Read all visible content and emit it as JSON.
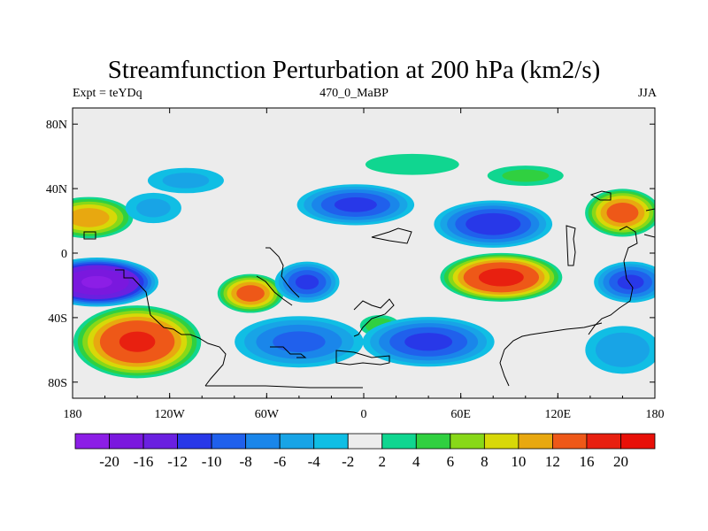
{
  "chart_data": {
    "type": "heatmap",
    "title": "Streamfunction Perturbation at 200 hPa (km2/s)",
    "left_label": "Expt = teYDq",
    "center_label": "470_0_MaBP",
    "right_label": "JJA",
    "xlim": [
      -180,
      180
    ],
    "ylim": [
      -90,
      90
    ],
    "x_ticks": [
      {
        "value": -180,
        "label": "180"
      },
      {
        "value": -120,
        "label": "120W"
      },
      {
        "value": -60,
        "label": "60W"
      },
      {
        "value": 0,
        "label": "0"
      },
      {
        "value": 60,
        "label": "60E"
      },
      {
        "value": 120,
        "label": "120E"
      },
      {
        "value": 180,
        "label": "180"
      }
    ],
    "y_ticks": [
      {
        "value": 80,
        "label": "80N"
      },
      {
        "value": 40,
        "label": "40N"
      },
      {
        "value": 0,
        "label": "0"
      },
      {
        "value": -40,
        "label": "40S"
      },
      {
        "value": -80,
        "label": "80S"
      }
    ],
    "colorbar": {
      "levels": [
        "-20",
        "-16",
        "-12",
        "-10",
        "-8",
        "-6",
        "-4",
        "-2",
        "2",
        "4",
        "6",
        "8",
        "10",
        "12",
        "16",
        "20"
      ],
      "colors": [
        "#8c1ee6",
        "#7a18de",
        "#6a20e0",
        "#2838e8",
        "#2060ec",
        "#1a86ea",
        "#18a4e6",
        "#10bee4",
        "#ececec",
        "#10d690",
        "#30d040",
        "#88d818",
        "#d8d808",
        "#e8a810",
        "#ee5818",
        "#e82010",
        "#e81008"
      ]
    },
    "field_blobs": [
      {
        "lon": -170,
        "lat": 22,
        "rx": 30,
        "ry": 14,
        "value": 11
      },
      {
        "lon": -165,
        "lat": -18,
        "rx": 40,
        "ry": 16,
        "value": -20
      },
      {
        "lon": -130,
        "lat": 28,
        "rx": 22,
        "ry": 12,
        "value": -4
      },
      {
        "lon": -140,
        "lat": -55,
        "rx": 42,
        "ry": 24,
        "value": 16
      },
      {
        "lon": -70,
        "lat": -25,
        "rx": 22,
        "ry": 13,
        "value": 13
      },
      {
        "lon": -40,
        "lat": -55,
        "rx": 45,
        "ry": 18,
        "value": -8
      },
      {
        "lon": -35,
        "lat": -18,
        "rx": 22,
        "ry": 14,
        "value": -10
      },
      {
        "lon": -5,
        "lat": 30,
        "rx": 40,
        "ry": 14,
        "value": -10
      },
      {
        "lon": 10,
        "lat": -45,
        "rx": 15,
        "ry": 8,
        "value": 5
      },
      {
        "lon": 40,
        "lat": -55,
        "rx": 45,
        "ry": 17,
        "value": -10
      },
      {
        "lon": 30,
        "lat": 55,
        "rx": 40,
        "ry": 9,
        "value": 3
      },
      {
        "lon": 85,
        "lat": -15,
        "rx": 40,
        "ry": 16,
        "value": 17
      },
      {
        "lon": 80,
        "lat": 18,
        "rx": 40,
        "ry": 16,
        "value": -11
      },
      {
        "lon": 160,
        "lat": 25,
        "rx": 25,
        "ry": 16,
        "value": 13
      },
      {
        "lon": 165,
        "lat": -18,
        "rx": 25,
        "ry": 14,
        "value": -10
      },
      {
        "lon": 160,
        "lat": -60,
        "rx": 28,
        "ry": 18,
        "value": -5
      },
      {
        "lon": -110,
        "lat": 45,
        "rx": 30,
        "ry": 10,
        "value": -4
      },
      {
        "lon": 100,
        "lat": 48,
        "rx": 30,
        "ry": 8,
        "value": 4
      }
    ]
  }
}
